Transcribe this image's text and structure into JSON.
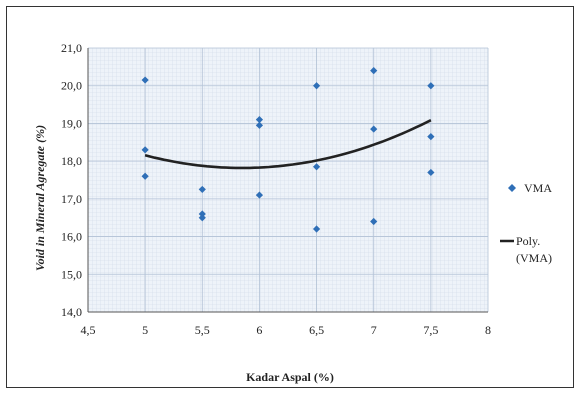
{
  "chart_data": {
    "type": "scatter",
    "title": "",
    "xlabel": "Kadar Aspal (%)",
    "ylabel": "Void in Mineral Agregate (%)",
    "xlim": [
      4.5,
      8
    ],
    "ylim": [
      14.0,
      21.0
    ],
    "x_ticks": [
      "4,5",
      "5",
      "5,5",
      "6",
      "6,5",
      "7",
      "7,5",
      "8"
    ],
    "y_ticks": [
      "14,0",
      "15,0",
      "16,0",
      "17,0",
      "18,0",
      "19,0",
      "20,0",
      "21,0"
    ],
    "grid": true,
    "legend_position": "right",
    "series": [
      {
        "name": "VMA",
        "kind": "scatter",
        "color": "#2f6fb7",
        "points": [
          [
            5,
            20.15
          ],
          [
            5,
            18.3
          ],
          [
            5,
            17.6
          ],
          [
            5.5,
            17.25
          ],
          [
            5.5,
            16.6
          ],
          [
            5.5,
            16.5
          ],
          [
            6,
            19.1
          ],
          [
            6,
            18.95
          ],
          [
            6,
            17.1
          ],
          [
            6.5,
            20.0
          ],
          [
            6.5,
            17.85
          ],
          [
            6.5,
            16.2
          ],
          [
            7,
            20.4
          ],
          [
            7,
            18.85
          ],
          [
            7,
            16.4
          ],
          [
            7.5,
            20.0
          ],
          [
            7.5,
            18.65
          ],
          [
            7.5,
            17.7
          ]
        ]
      },
      {
        "name": "Poly.",
        "name_line2": "(VMA)",
        "kind": "trendline",
        "color": "#222222",
        "x_range": [
          5,
          7.5
        ],
        "coefficients": [
          0.465,
          -5.44,
          33.73
        ]
      }
    ]
  }
}
